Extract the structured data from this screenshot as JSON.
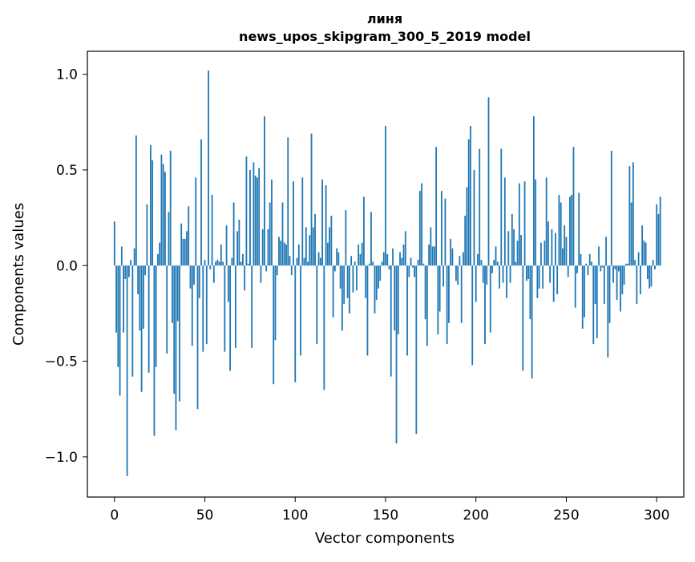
{
  "chart_data": {
    "type": "bar",
    "title_line1": "линя",
    "title_line2": "news_upos_skipgram_300_5_2019 model",
    "xlabel": "Vector components",
    "ylabel": "Components values",
    "xlim": [
      -15,
      315
    ],
    "ylim": [
      -1.21,
      1.12
    ],
    "x_ticks": [
      0,
      50,
      100,
      150,
      200,
      250,
      300
    ],
    "x_tick_labels": [
      "0",
      "50",
      "100",
      "150",
      "200",
      "250",
      "300"
    ],
    "y_ticks": [
      -1.0,
      -0.5,
      0.0,
      0.5,
      1.0
    ],
    "y_tick_labels": [
      "−1.0",
      "−0.5",
      "0.0",
      "0.5",
      "1.0"
    ],
    "bar_color": "#1f77b4",
    "values": [
      0.23,
      -0.35,
      -0.53,
      -0.68,
      0.1,
      -0.35,
      -0.07,
      -1.1,
      -0.06,
      0.03,
      -0.58,
      0.09,
      0.68,
      -0.15,
      -0.34,
      -0.66,
      -0.33,
      -0.05,
      0.32,
      -0.56,
      0.63,
      0.55,
      -0.89,
      -0.53,
      0.06,
      0.12,
      0.58,
      0.53,
      0.49,
      -0.46,
      0.28,
      0.6,
      -0.3,
      -0.67,
      -0.86,
      -0.29,
      -0.71,
      0.22,
      0.14,
      0.14,
      0.18,
      0.31,
      -0.12,
      -0.42,
      -0.1,
      0.46,
      -0.75,
      -0.17,
      0.66,
      -0.45,
      0.03,
      -0.41,
      1.02,
      -0.02,
      0.37,
      -0.09,
      0.02,
      0.03,
      0.02,
      0.11,
      0.02,
      -0.45,
      0.21,
      -0.19,
      -0.55,
      0.04,
      0.33,
      -0.43,
      0.18,
      0.24,
      0.02,
      0.06,
      -0.13,
      0.57,
      0.01,
      0.5,
      -0.43,
      0.54,
      0.47,
      0.46,
      0.51,
      -0.09,
      0.19,
      0.78,
      -0.03,
      0.19,
      0.33,
      0.45,
      -0.62,
      -0.39,
      -0.05,
      0.15,
      0.13,
      0.33,
      0.12,
      0.11,
      0.67,
      0.05,
      -0.05,
      0.44,
      -0.61,
      0.04,
      0.11,
      -0.47,
      0.46,
      0.04,
      0.2,
      0.02,
      0.16,
      0.69,
      0.2,
      0.27,
      -0.41,
      0.07,
      0.04,
      0.45,
      -0.65,
      0.42,
      0.12,
      0.2,
      0.26,
      -0.27,
      -0.03,
      0.09,
      0.07,
      -0.12,
      -0.34,
      -0.2,
      0.29,
      -0.17,
      -0.25,
      0.05,
      -0.14,
      0.02,
      -0.13,
      0.11,
      0.06,
      0.12,
      0.36,
      -0.17,
      -0.47,
      0.01,
      0.28,
      0.02,
      -0.25,
      -0.18,
      -0.12,
      -0.08,
      0.02,
      0.07,
      0.73,
      0.06,
      -0.02,
      -0.58,
      0.09,
      -0.34,
      -0.93,
      -0.36,
      0.07,
      0.04,
      0.11,
      0.18,
      -0.47,
      -0.06,
      0.04,
      -0.01,
      -0.06,
      -0.88,
      0.03,
      0.39,
      0.43,
      0.01,
      -0.28,
      -0.42,
      0.11,
      0.2,
      0.1,
      0.1,
      0.62,
      -0.36,
      -0.24,
      0.39,
      -0.11,
      0.35,
      -0.41,
      -0.3,
      0.14,
      0.09,
      0.0,
      -0.08,
      -0.1,
      0.05,
      -0.3,
      0.07,
      0.26,
      0.41,
      0.66,
      0.73,
      -0.52,
      0.5,
      -0.19,
      0.06,
      0.61,
      0.03,
      -0.09,
      -0.41,
      -0.1,
      0.88,
      -0.35,
      -0.04,
      0.03,
      0.1,
      0.02,
      -0.12,
      0.61,
      -0.09,
      0.46,
      -0.17,
      0.18,
      -0.09,
      0.27,
      0.19,
      0.02,
      0.13,
      0.43,
      0.16,
      -0.55,
      0.44,
      -0.08,
      -0.07,
      -0.28,
      -0.59,
      0.78,
      0.45,
      -0.17,
      -0.12,
      0.12,
      -0.12,
      0.13,
      0.46,
      0.23,
      -0.09,
      0.19,
      -0.19,
      0.17,
      -0.15,
      0.37,
      0.33,
      0.09,
      0.21,
      0.15,
      -0.06,
      0.36,
      0.37,
      0.62,
      -0.22,
      -0.04,
      0.38,
      0.06,
      -0.33,
      -0.27,
      0.01,
      -0.05,
      0.06,
      0.02,
      -0.41,
      -0.2,
      -0.38,
      0.1,
      -0.03,
      -0.01,
      -0.2,
      0.15,
      -0.48,
      -0.3,
      0.6,
      -0.09,
      -0.02,
      -0.18,
      -0.03,
      -0.24,
      -0.15,
      -0.1,
      0.01,
      0.01,
      0.52,
      0.33,
      0.54,
      0.03,
      -0.2,
      0.07,
      -0.15,
      0.21,
      0.13,
      0.12,
      -0.07,
      -0.12,
      -0.11,
      0.03,
      -0.02,
      0.32,
      0.27,
      0.36
    ]
  }
}
